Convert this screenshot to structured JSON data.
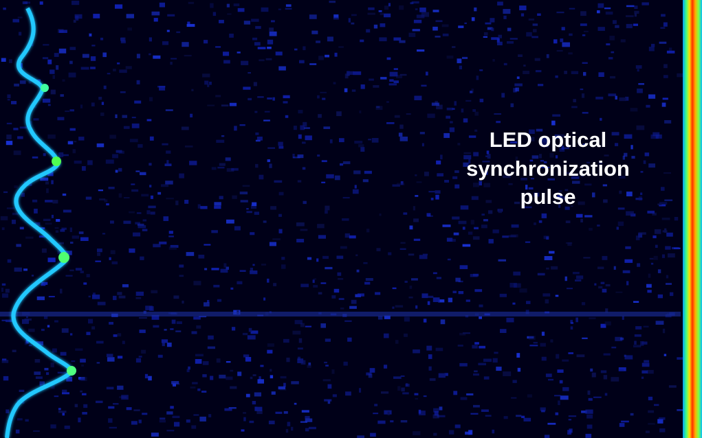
{
  "annotation": {
    "lines": [
      "LED optical",
      "synchronization",
      "pulse"
    ]
  }
}
